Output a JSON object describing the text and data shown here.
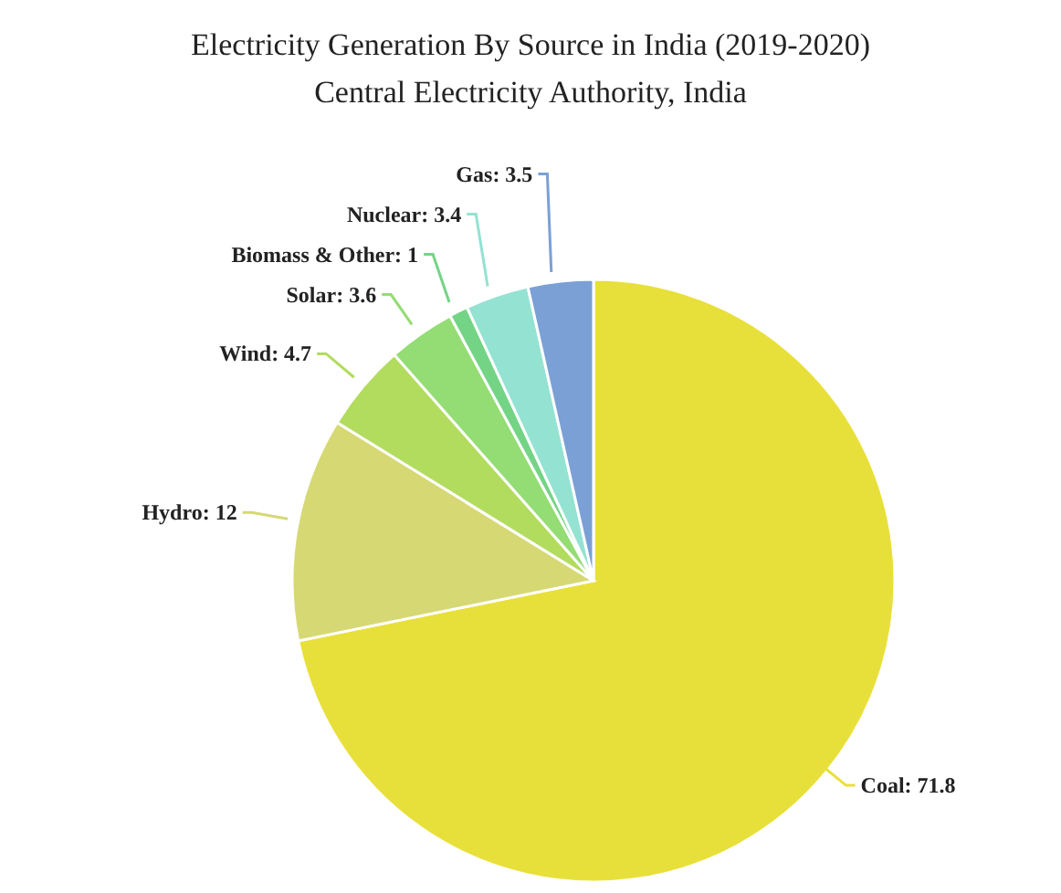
{
  "chart_data": {
    "type": "pie",
    "title": "Electricity Generation By Source in India (2019-2020)",
    "subtitle": "Central Electricity Authority, India",
    "categories": [
      "Coal",
      "Hydro",
      "Wind",
      "Solar",
      "Biomass & Other",
      "Nuclear",
      "Gas"
    ],
    "values": [
      71.8,
      12,
      4.7,
      3.6,
      1,
      3.4,
      3.5
    ],
    "colors": [
      "#e8e03a",
      "#d6d874",
      "#b2dc5e",
      "#94dc74",
      "#74d486",
      "#94e2d2",
      "#7aa0d6"
    ],
    "value_labels": [
      ": 71.8",
      ": 12",
      ": 4.7",
      ": 3.6",
      ": 1",
      ": 3.4",
      ": 3.5"
    ],
    "legend": false
  }
}
